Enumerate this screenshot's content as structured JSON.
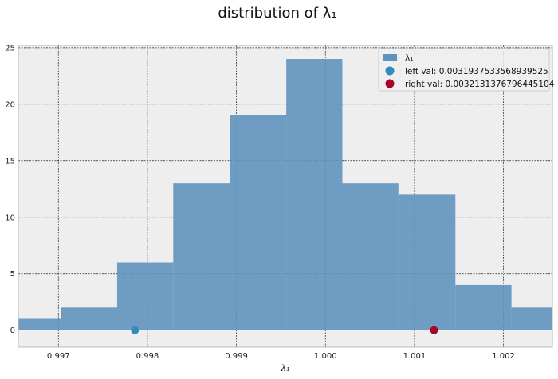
{
  "chart_data": {
    "type": "bar",
    "title": "distribution of λ₁",
    "xlabel": "λ₁",
    "ylabel": "",
    "xlim": [
      0.99655,
      1.00255
    ],
    "ylim": [
      -1.5,
      25.2
    ],
    "grid": true,
    "legend_position": "top-right",
    "series": [
      {
        "name": "λ₁",
        "type": "histogram",
        "color": "#5f92bd",
        "bins": [
          {
            "x0": 0.99655,
            "x1": 0.99703,
            "count": 1
          },
          {
            "x0": 0.99703,
            "x1": 0.99766,
            "count": 2
          },
          {
            "x0": 0.99766,
            "x1": 0.99829,
            "count": 6
          },
          {
            "x0": 0.99829,
            "x1": 0.99893,
            "count": 13
          },
          {
            "x0": 0.99893,
            "x1": 0.99956,
            "count": 19
          },
          {
            "x0": 0.99956,
            "x1": 1.00019,
            "count": 24
          },
          {
            "x0": 1.00019,
            "x1": 1.00082,
            "count": 13
          },
          {
            "x0": 1.00082,
            "x1": 1.00146,
            "count": 12
          },
          {
            "x0": 1.00146,
            "x1": 1.00209,
            "count": 4
          },
          {
            "x0": 1.00209,
            "x1": 1.00255,
            "count": 2
          }
        ]
      },
      {
        "name": "left val: 0.0031937533568939525",
        "type": "scatter",
        "color": "#348abd",
        "points": [
          {
            "x": 0.99786,
            "y": 0
          }
        ]
      },
      {
        "name": "right val: 0.0032131376796445104",
        "type": "scatter",
        "color": "#a60628",
        "points": [
          {
            "x": 1.00122,
            "y": 0
          }
        ]
      }
    ],
    "x_ticks": [
      {
        "value": 0.997,
        "label": "0.997"
      },
      {
        "value": 0.998,
        "label": "0.998"
      },
      {
        "value": 0.999,
        "label": "0.999"
      },
      {
        "value": 1.0,
        "label": "1.000"
      },
      {
        "value": 1.001,
        "label": "1.001"
      },
      {
        "value": 1.002,
        "label": "1.002"
      }
    ],
    "y_ticks": [
      {
        "value": 0,
        "label": "0"
      },
      {
        "value": 5,
        "label": "5"
      },
      {
        "value": 10,
        "label": "10"
      },
      {
        "value": 15,
        "label": "15"
      },
      {
        "value": 20,
        "label": "20"
      },
      {
        "value": 25,
        "label": "25"
      }
    ]
  }
}
